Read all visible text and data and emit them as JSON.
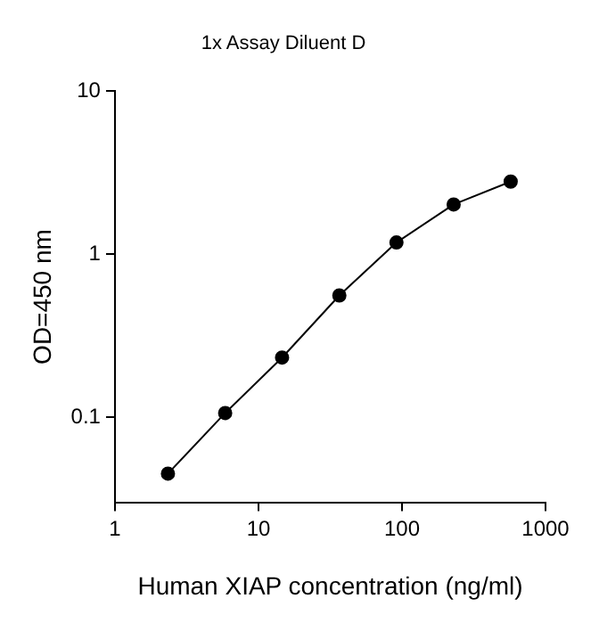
{
  "chart_data": {
    "type": "line",
    "title": "1x Assay Diluent D",
    "xlabel": "Human XIAP concentration (ng/ml)",
    "ylabel": "OD=450 nm",
    "x": [
      2.34,
      5.86,
      14.6,
      36.6,
      91.5,
      229,
      572
    ],
    "series": [
      {
        "color": "#000000",
        "values": [
          0.045,
          0.106,
          0.232,
          0.558,
          1.18,
          2.02,
          2.79
        ]
      }
    ],
    "log": "xy",
    "xlim": [
      1,
      1000
    ],
    "ylim": [
      0.03,
      10
    ],
    "xticks": [
      1,
      10,
      100,
      1000
    ],
    "yticks": [
      0.1,
      1,
      10
    ],
    "grid": false,
    "legend": false,
    "marker": "circle",
    "line_style": "solid"
  }
}
